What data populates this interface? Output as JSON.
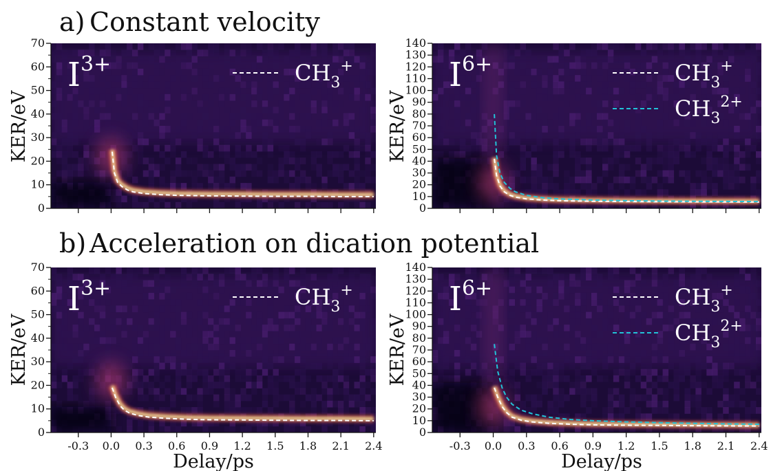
{
  "rows": [
    {
      "label": "a)",
      "title": "Constant velocity"
    },
    {
      "label": "b)",
      "title": "Acceleration on dication potential"
    }
  ],
  "axes": {
    "ylabel": "KER/eV",
    "xlabel": "Delay/ps"
  },
  "colors": {
    "ch3_plus": "#ffffff",
    "ch3_2plus": "#22c3d8",
    "signal_hot": "#fce9a0"
  },
  "chart_data": [
    {
      "type": "heatmap",
      "id": "a-left",
      "ion": {
        "base": "I",
        "charge": "3+"
      },
      "xlim": [
        -0.55,
        2.42
      ],
      "ylim": [
        0,
        70
      ],
      "xticks": [
        -0.3,
        0.0,
        0.3,
        0.6,
        0.9,
        1.2,
        1.5,
        1.8,
        2.1,
        2.4
      ],
      "yticks": [
        0,
        10,
        20,
        30,
        40,
        50,
        60,
        70
      ],
      "show_xticklabels": false,
      "band": {
        "asymptote": 5.4,
        "peak": 22
      },
      "series": [
        {
          "name": "CH3+",
          "label_base": "CH",
          "label_sub": "3",
          "label_sup": "+",
          "color": "#ffffff",
          "x": [
            0.01,
            0.03,
            0.06,
            0.1,
            0.15,
            0.2,
            0.3,
            0.45,
            0.6,
            0.9,
            1.2,
            1.5,
            1.8,
            2.1,
            2.4
          ],
          "y": [
            24,
            15,
            11,
            9.2,
            7.8,
            7.0,
            6.3,
            5.8,
            5.5,
            5.3,
            5.2,
            5.1,
            5.1,
            5.0,
            5.0
          ]
        }
      ]
    },
    {
      "type": "heatmap",
      "id": "a-right",
      "ion": {
        "base": "I",
        "charge": "6+"
      },
      "xlim": [
        -0.55,
        2.42
      ],
      "ylim": [
        0,
        140
      ],
      "xticks": [
        -0.3,
        0.0,
        0.3,
        0.6,
        0.9,
        1.2,
        1.5,
        1.8,
        2.1,
        2.4
      ],
      "yticks": [
        0,
        10,
        20,
        30,
        40,
        50,
        60,
        70,
        80,
        90,
        100,
        110,
        120,
        130,
        140
      ],
      "show_xticklabels": false,
      "band": {
        "asymptote": 6,
        "peak": 22
      },
      "series": [
        {
          "name": "CH3+",
          "label_base": "CH",
          "label_sub": "3",
          "label_sup": "+",
          "color": "#ffffff",
          "x": [
            0.01,
            0.03,
            0.06,
            0.1,
            0.15,
            0.2,
            0.3,
            0.45,
            0.6,
            0.9,
            1.2,
            1.5,
            1.8,
            2.1,
            2.4
          ],
          "y": [
            42,
            28,
            19,
            14,
            11,
            9.5,
            8.0,
            7.0,
            6.5,
            6.0,
            5.8,
            5.6,
            5.5,
            5.4,
            5.3
          ]
        },
        {
          "name": "CH3 2+",
          "label_base": "CH",
          "label_sub": "3",
          "label_sup": "2+",
          "color": "#22c3d8",
          "x": [
            0.01,
            0.03,
            0.06,
            0.1,
            0.15,
            0.2,
            0.3,
            0.45,
            0.6,
            0.9,
            1.2,
            1.5,
            1.8,
            2.1,
            2.4
          ],
          "y": [
            80,
            45,
            30,
            22,
            17,
            14,
            11,
            9.0,
            8.0,
            7.0,
            6.5,
            6.2,
            6.0,
            5.9,
            5.8
          ]
        }
      ]
    },
    {
      "type": "heatmap",
      "id": "b-left",
      "ion": {
        "base": "I",
        "charge": "3+"
      },
      "xlim": [
        -0.55,
        2.42
      ],
      "ylim": [
        0,
        70
      ],
      "xticks": [
        -0.3,
        0.0,
        0.3,
        0.6,
        0.9,
        1.2,
        1.5,
        1.8,
        2.1,
        2.4
      ],
      "xticklabels": [
        "-0.3",
        "0.0",
        "0.3",
        "0.6",
        "0.9",
        "1.2",
        "1.5",
        "1.8",
        "2.1",
        "2.4"
      ],
      "yticks": [
        0,
        10,
        20,
        30,
        40,
        50,
        60,
        70
      ],
      "show_xticklabels": true,
      "band": {
        "asymptote": 5.4,
        "peak": 22
      },
      "series": [
        {
          "name": "CH3+",
          "label_base": "CH",
          "label_sub": "3",
          "label_sup": "+",
          "color": "#ffffff",
          "x": [
            0.01,
            0.04,
            0.08,
            0.12,
            0.17,
            0.25,
            0.35,
            0.5,
            0.7,
            0.9,
            1.2,
            1.5,
            1.8,
            2.1,
            2.4
          ],
          "y": [
            19,
            15,
            11.5,
            9.5,
            8.2,
            7.2,
            6.5,
            6.0,
            5.6,
            5.4,
            5.3,
            5.2,
            5.1,
            5.1,
            5.0
          ]
        }
      ]
    },
    {
      "type": "heatmap",
      "id": "b-right",
      "ion": {
        "base": "I",
        "charge": "6+"
      },
      "xlim": [
        -0.55,
        2.42
      ],
      "ylim": [
        0,
        140
      ],
      "xticks": [
        -0.3,
        0.0,
        0.3,
        0.6,
        0.9,
        1.2,
        1.5,
        1.8,
        2.1,
        2.4
      ],
      "xticklabels": [
        "-0.3",
        "0.0",
        "0.3",
        "0.6",
        "0.9",
        "1.2",
        "1.5",
        "1.8",
        "2.1",
        "2.4"
      ],
      "yticks": [
        0,
        10,
        20,
        30,
        40,
        50,
        60,
        70,
        80,
        90,
        100,
        110,
        120,
        130,
        140
      ],
      "show_xticklabels": true,
      "band": {
        "asymptote": 6,
        "peak": 22
      },
      "series": [
        {
          "name": "CH3+",
          "label_base": "CH",
          "label_sub": "3",
          "label_sup": "+",
          "color": "#ffffff",
          "x": [
            0.01,
            0.04,
            0.08,
            0.12,
            0.17,
            0.25,
            0.35,
            0.5,
            0.7,
            0.9,
            1.2,
            1.5,
            1.8,
            2.1,
            2.4
          ],
          "y": [
            38,
            30,
            22,
            17,
            13,
            10.5,
            9.0,
            7.8,
            7.0,
            6.5,
            6.2,
            6.0,
            5.8,
            5.6,
            5.5
          ]
        },
        {
          "name": "CH3 2+",
          "label_base": "CH",
          "label_sub": "3",
          "label_sup": "2+",
          "color": "#22c3d8",
          "x": [
            0.01,
            0.04,
            0.08,
            0.12,
            0.17,
            0.25,
            0.35,
            0.5,
            0.7,
            0.9,
            1.2,
            1.5,
            1.8,
            2.1,
            2.4
          ],
          "y": [
            75,
            52,
            38,
            30,
            24,
            19,
            16,
            13,
            11,
            10,
            9.0,
            8.3,
            7.8,
            7.3,
            7.0
          ]
        }
      ]
    }
  ]
}
